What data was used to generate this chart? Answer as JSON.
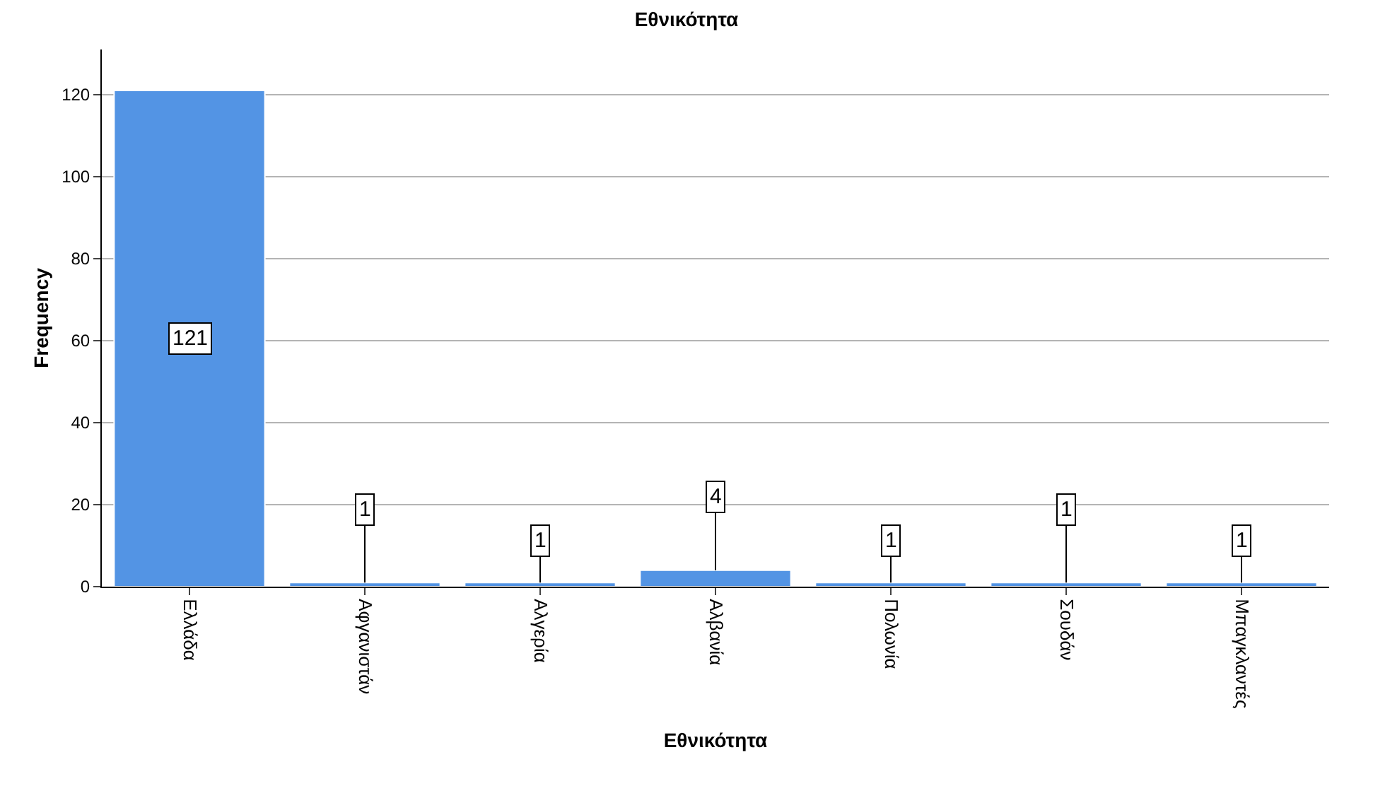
{
  "chart_data": {
    "type": "bar",
    "title": "Εθνικότητα",
    "xlabel": "Εθνικότητα",
    "ylabel": "Frequency",
    "categories": [
      "Ελλάδα",
      "Αφγανιστάν",
      "Αλγερία",
      "Αλβανία",
      "Πολωνία",
      "Σουδάν",
      "Μπαγκλαντές"
    ],
    "values": [
      121,
      1,
      1,
      4,
      1,
      1,
      1
    ],
    "color": "#5394e4",
    "ylim": [
      0,
      131
    ],
    "yticks": [
      0,
      20,
      40,
      60,
      80,
      100,
      120
    ],
    "grid": "y",
    "data_labels": true
  }
}
